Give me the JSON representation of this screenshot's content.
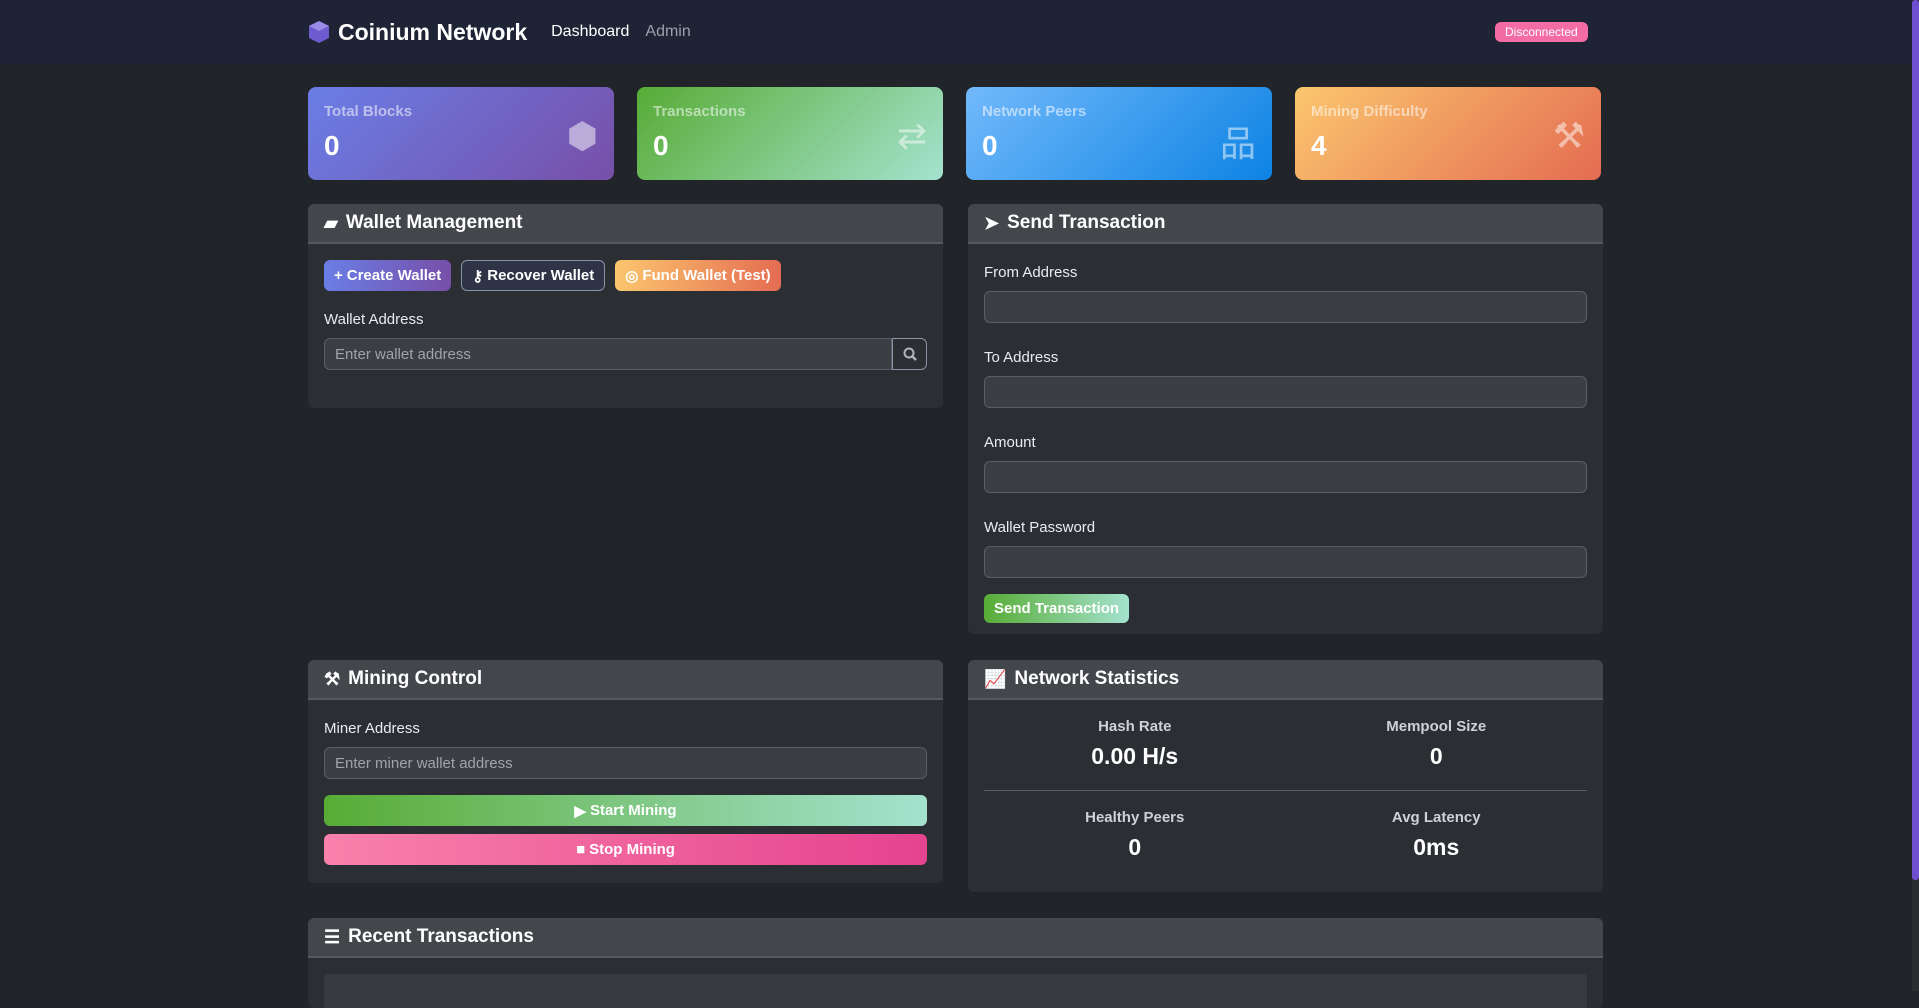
{
  "nav": {
    "brand": "Coinium Network",
    "links": [
      "Dashboard",
      "Admin"
    ],
    "status": "Disconnected"
  },
  "stats": [
    {
      "label": "Total Blocks",
      "value": "0",
      "icon": "cubes-icon",
      "gradient": [
        "#6a7ee6",
        "#774fa8"
      ]
    },
    {
      "label": "Transactions",
      "value": "0",
      "icon": "exchange-icon",
      "gradient": [
        "#57ac35",
        "#a5e2cf"
      ]
    },
    {
      "label": "Network Peers",
      "value": "0",
      "icon": "network-icon",
      "gradient": [
        "#72b9fb",
        "#0d83e3"
      ]
    },
    {
      "label": "Mining Difficulty",
      "value": "4",
      "icon": "hammer-icon",
      "gradient": [
        "#fbc66e",
        "#e46c52"
      ]
    }
  ],
  "wallet": {
    "title": "Wallet Management",
    "create": "Create Wallet",
    "recover": "Recover Wallet",
    "fund": "Fund Wallet (Test)",
    "address_label": "Wallet Address",
    "address_placeholder": "Enter wallet address"
  },
  "send": {
    "title": "Send Transaction",
    "from": "From Address",
    "to": "To Address",
    "amount": "Amount",
    "password": "Wallet Password",
    "button": "Send Transaction"
  },
  "mining": {
    "title": "Mining Control",
    "miner_label": "Miner Address",
    "miner_placeholder": "Enter miner wallet address",
    "start": "Start Mining",
    "stop": "Stop Mining"
  },
  "network": {
    "title": "Network Statistics",
    "hash_rate_label": "Hash Rate",
    "hash_rate": "0.00 H/s",
    "mempool_label": "Mempool Size",
    "mempool": "0",
    "healthy_label": "Healthy Peers",
    "healthy": "0",
    "latency_label": "Avg Latency",
    "latency": "0ms"
  },
  "recent": {
    "title": "Recent Transactions"
  }
}
